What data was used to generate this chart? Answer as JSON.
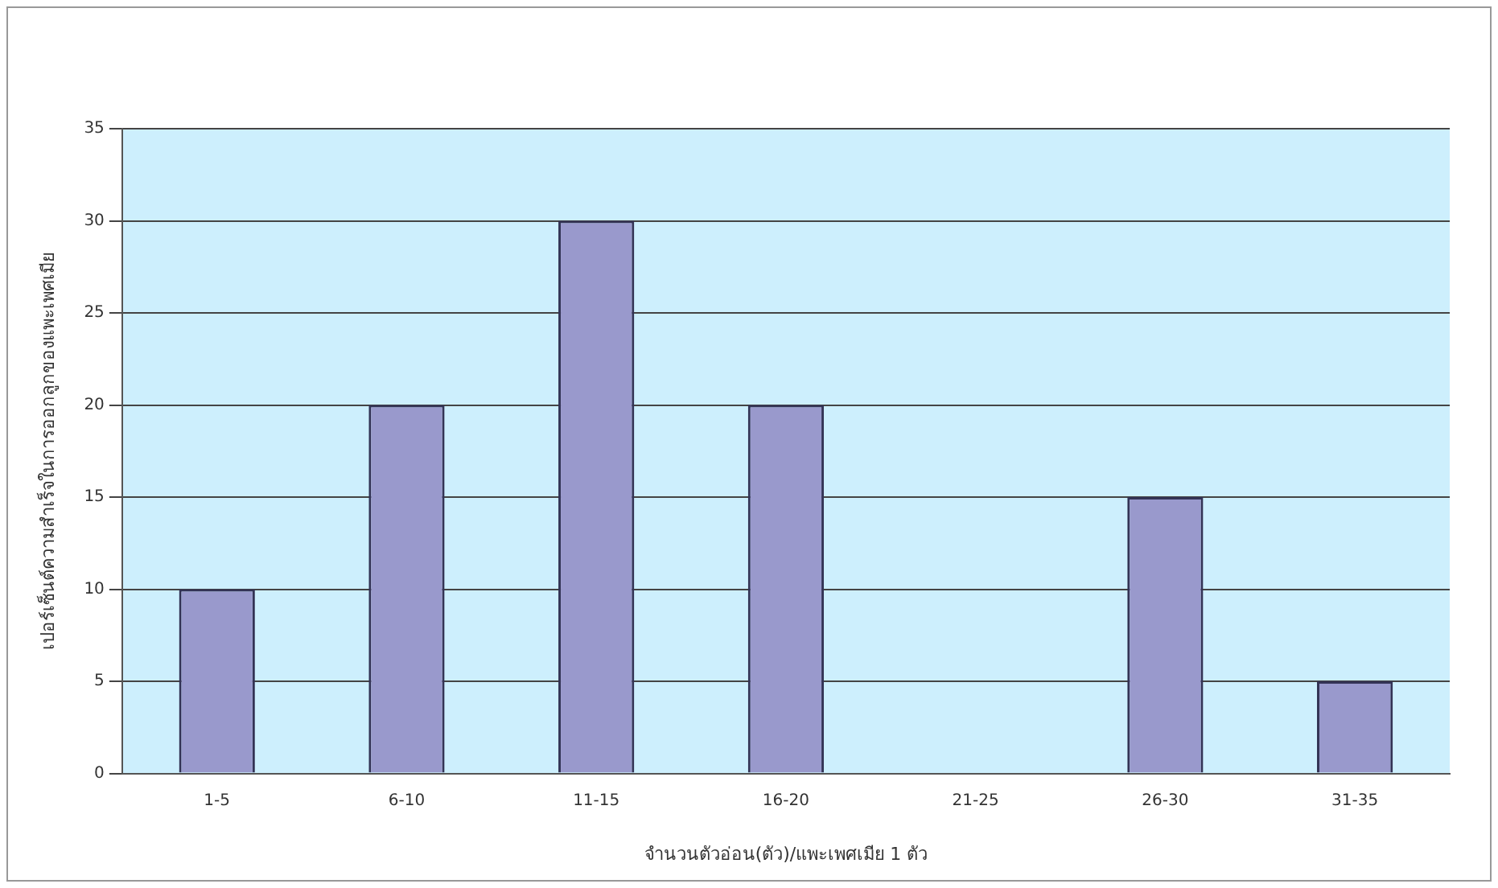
{
  "chart_data": {
    "type": "bar",
    "xlabel": "จำนวนตัวอ่อน(ตัว)/แพะเพศเมีย 1 ตัว",
    "ylabel": "เปอร์เซ็นต์ความสำเร็จในการออกลูกของแพะเพศเมีย",
    "categories": [
      "1-5",
      "6-10",
      "11-15",
      "16-20",
      "21-25",
      "26-30",
      "31-35"
    ],
    "values": [
      10,
      20,
      30,
      20,
      0,
      15,
      5
    ],
    "color": "#9999cc",
    "ylim": [
      0,
      35
    ],
    "yticks": [
      0,
      5,
      10,
      15,
      20,
      25,
      30,
      35
    ],
    "grid": "y"
  }
}
